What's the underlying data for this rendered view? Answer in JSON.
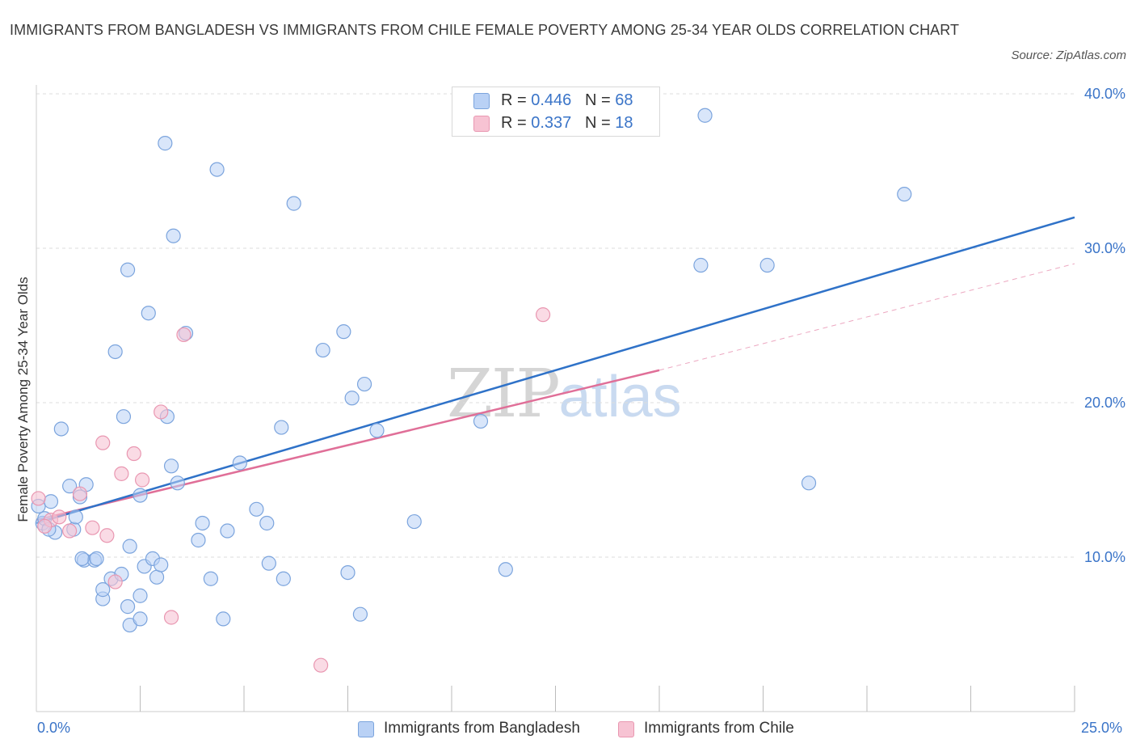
{
  "header": {
    "title": "IMMIGRANTS FROM BANGLADESH VS IMMIGRANTS FROM CHILE FEMALE POVERTY AMONG 25-34 YEAR OLDS CORRELATION CHART",
    "source": "Source: ZipAtlas.com"
  },
  "watermark": {
    "zip": "ZIP",
    "atlas": "atlas"
  },
  "colors": {
    "bangladesh_fill": "#b9d1f5",
    "bangladesh_stroke": "#7ba4dd",
    "bangladesh_line": "#2f72c8",
    "chile_fill": "#f7c3d3",
    "chile_stroke": "#e997b1",
    "chile_line": "#e06f98",
    "axis_label": "#3a74c8",
    "grid": "#dddddd"
  },
  "legend": {
    "bangladesh": {
      "r_label": "R = ",
      "r_value": "0.446",
      "n_label": "N = ",
      "n_value": "68"
    },
    "chile": {
      "r_label": "R = ",
      "r_value": "0.337",
      "n_label": "N = ",
      "n_value": "18"
    }
  },
  "chart_data": {
    "type": "scatter",
    "xlim": [
      0,
      25
    ],
    "ylim": [
      0,
      40
    ],
    "ylabel": "Female Poverty Among 25-34 Year Olds",
    "x_tick_labels": [
      "0.0%",
      "25.0%"
    ],
    "y_ticks": [
      10,
      20,
      30,
      40
    ],
    "y_tick_labels": [
      "10.0%",
      "20.0%",
      "30.0%",
      "40.0%"
    ],
    "grid": true,
    "legend_position": "top-center",
    "series": [
      {
        "name": "Immigrants from Bangladesh",
        "points": [
          [
            0.05,
            13.3
          ],
          [
            0.15,
            12.2
          ],
          [
            0.2,
            12.5
          ],
          [
            0.35,
            13.6
          ],
          [
            0.45,
            11.6
          ],
          [
            0.6,
            18.3
          ],
          [
            0.8,
            14.6
          ],
          [
            0.9,
            11.8
          ],
          [
            0.95,
            12.6
          ],
          [
            1.05,
            13.9
          ],
          [
            1.15,
            9.8
          ],
          [
            1.2,
            14.7
          ],
          [
            1.4,
            9.8
          ],
          [
            1.45,
            9.9
          ],
          [
            1.6,
            7.3
          ],
          [
            1.6,
            7.9
          ],
          [
            1.8,
            8.6
          ],
          [
            1.9,
            23.3
          ],
          [
            2.05,
            8.9
          ],
          [
            2.1,
            19.1
          ],
          [
            2.2,
            6.8
          ],
          [
            2.2,
            28.6
          ],
          [
            2.25,
            5.6
          ],
          [
            2.5,
            6.0
          ],
          [
            2.5,
            7.5
          ],
          [
            2.25,
            10.7
          ],
          [
            2.5,
            14.0
          ],
          [
            2.6,
            9.4
          ],
          [
            2.7,
            25.8
          ],
          [
            2.8,
            9.9
          ],
          [
            2.9,
            8.7
          ],
          [
            3.0,
            9.5
          ],
          [
            3.1,
            36.8
          ],
          [
            3.15,
            19.1
          ],
          [
            3.25,
            15.9
          ],
          [
            3.3,
            30.8
          ],
          [
            3.4,
            14.8
          ],
          [
            3.6,
            24.5
          ],
          [
            3.9,
            11.1
          ],
          [
            4.0,
            12.2
          ],
          [
            4.2,
            8.6
          ],
          [
            4.35,
            35.1
          ],
          [
            4.5,
            6.0
          ],
          [
            4.6,
            11.7
          ],
          [
            4.9,
            16.1
          ],
          [
            5.3,
            13.1
          ],
          [
            5.55,
            12.2
          ],
          [
            5.6,
            9.6
          ],
          [
            5.95,
            8.6
          ],
          [
            5.9,
            18.4
          ],
          [
            6.2,
            32.9
          ],
          [
            6.9,
            23.4
          ],
          [
            7.4,
            24.6
          ],
          [
            7.5,
            9.0
          ],
          [
            7.6,
            20.3
          ],
          [
            7.8,
            6.3
          ],
          [
            7.9,
            21.2
          ],
          [
            8.2,
            18.2
          ],
          [
            9.1,
            12.3
          ],
          [
            10.7,
            18.8
          ],
          [
            11.3,
            9.2
          ],
          [
            16.1,
            38.6
          ],
          [
            16.0,
            28.9
          ],
          [
            17.6,
            28.9
          ],
          [
            18.6,
            14.8
          ],
          [
            20.9,
            33.5
          ],
          [
            1.1,
            9.9
          ],
          [
            0.3,
            11.8
          ]
        ],
        "trend": {
          "x": [
            0,
            25
          ],
          "y": [
            12.2,
            32.0
          ]
        }
      },
      {
        "name": "Immigrants from Chile",
        "points": [
          [
            0.05,
            13.8
          ],
          [
            0.35,
            12.4
          ],
          [
            0.55,
            12.6
          ],
          [
            0.8,
            11.7
          ],
          [
            1.05,
            14.1
          ],
          [
            1.35,
            11.9
          ],
          [
            1.6,
            17.4
          ],
          [
            1.7,
            11.4
          ],
          [
            1.9,
            8.4
          ],
          [
            2.05,
            15.4
          ],
          [
            2.35,
            16.7
          ],
          [
            2.55,
            15.0
          ],
          [
            3.0,
            19.4
          ],
          [
            3.55,
            24.4
          ],
          [
            3.25,
            6.1
          ],
          [
            6.85,
            3.0
          ],
          [
            12.2,
            25.7
          ],
          [
            0.2,
            12.0
          ]
        ],
        "trend": {
          "x": [
            0,
            15
          ],
          "y": [
            12.4,
            22.1
          ]
        },
        "trend_ext": {
          "x": [
            15,
            25
          ],
          "y": [
            22.1,
            29.0
          ]
        }
      }
    ]
  }
}
